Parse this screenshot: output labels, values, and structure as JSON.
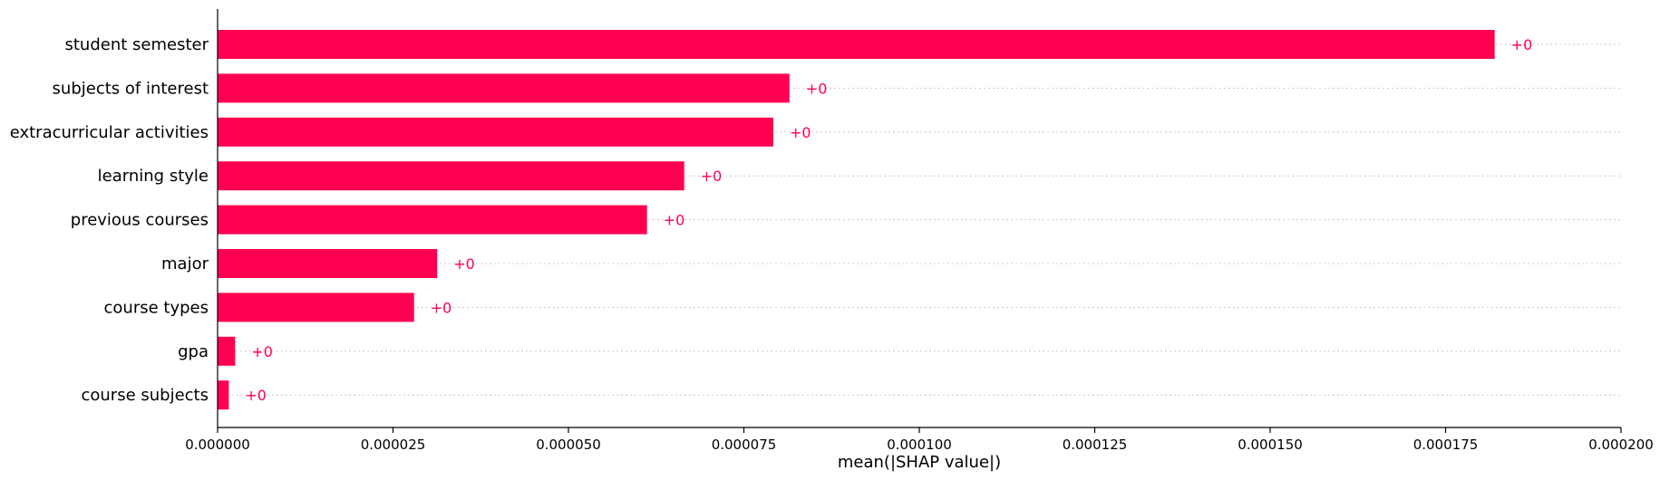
{
  "chart_data": {
    "type": "bar",
    "orientation": "horizontal",
    "categories": [
      "student semester",
      "subjects of interest",
      "extracurricular activities",
      "learning style",
      "previous courses",
      "major",
      "course types",
      "gpa",
      "course subjects"
    ],
    "values": [
      0.000182,
      8.15e-05,
      7.92e-05,
      6.65e-05,
      6.12e-05,
      3.13e-05,
      2.8e-05,
      2.5e-06,
      1.6e-06
    ],
    "value_labels": [
      "+0",
      "+0",
      "+0",
      "+0",
      "+0",
      "+0",
      "+0",
      "+0",
      "+0"
    ],
    "xlabel": "mean(|SHAP value|)",
    "xlim": [
      0,
      0.0002
    ],
    "xticks": [
      0,
      2.5e-05,
      5e-05,
      7.5e-05,
      0.0001,
      0.000125,
      0.00015,
      0.000175,
      0.0002
    ],
    "xtick_labels": [
      "0.000000",
      "0.000025",
      "0.000050",
      "0.000075",
      "0.000100",
      "0.000125",
      "0.000150",
      "0.000175",
      "0.000200"
    ],
    "grid": "horizontal dotted per category",
    "bar_color": "#ff0051",
    "label_color": "#ff0051",
    "grid_color": "#cccccc"
  }
}
